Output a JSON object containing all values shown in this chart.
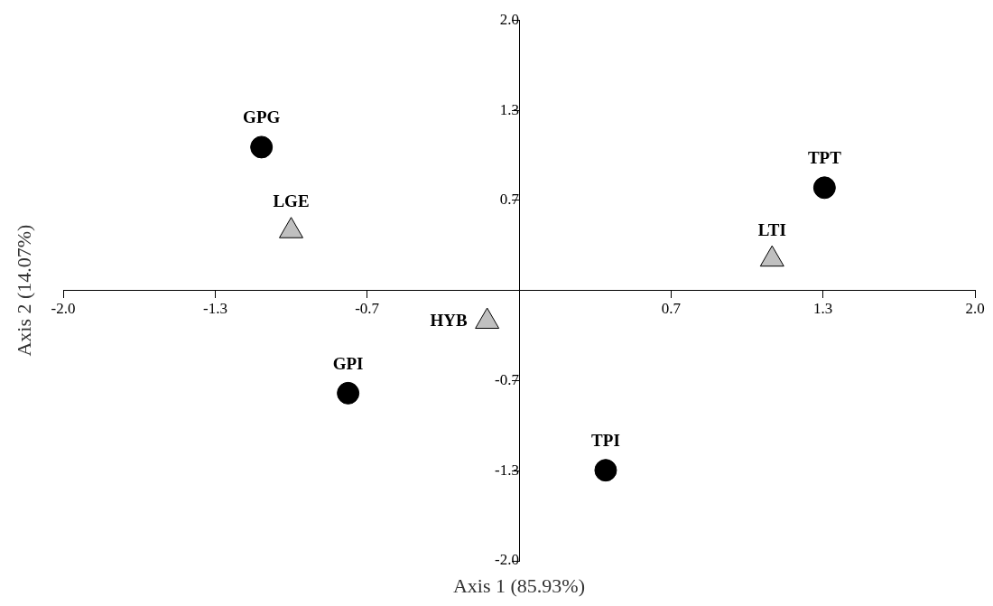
{
  "chart_data": {
    "type": "scatter",
    "xlabel": "Axis 1 (85.93%)",
    "ylabel": "Axis 2 (14.07%)",
    "xlim": [
      -2.0,
      2.0
    ],
    "ylim": [
      -2.0,
      2.0
    ],
    "xticks": [
      {
        "value": -2,
        "label": "-2.0"
      },
      {
        "value": -1.333,
        "label": "-1.3"
      },
      {
        "value": -0.667,
        "label": "-0.7"
      },
      {
        "value": 0.667,
        "label": "0.7"
      },
      {
        "value": 1.333,
        "label": "1.3"
      },
      {
        "value": 2,
        "label": "2.0"
      }
    ],
    "yticks": [
      {
        "value": -2,
        "label": "-2.0"
      },
      {
        "value": -1.333,
        "label": "-1.3"
      },
      {
        "value": -0.667,
        "label": "-0.7"
      },
      {
        "value": 0.667,
        "label": "0.7"
      },
      {
        "value": 1.333,
        "label": "1.3"
      },
      {
        "value": 2,
        "label": "2.0"
      }
    ],
    "grid": false,
    "legend": false,
    "series": [
      {
        "color": "#000000",
        "marker": "circle",
        "x": [
          -1.13,
          -0.75,
          0.38,
          1.34
        ],
        "values": [
          1.06,
          -0.76,
          -1.33,
          0.76
        ]
      },
      {
        "color": "#c0c0c0",
        "marker": "triangle",
        "x": [
          -1.0,
          -0.14,
          1.11
        ],
        "values": [
          0.44,
          -0.23,
          0.23
        ]
      }
    ],
    "annotations": [
      {
        "text": "GPG",
        "x": -1.13,
        "y": 1.06
      },
      {
        "text": "LGE",
        "x": -1.0,
        "y": 0.44
      },
      {
        "text": "GPI",
        "x": -0.75,
        "y": -0.76
      },
      {
        "text": "HYB",
        "x": -0.14,
        "y": -0.23
      },
      {
        "text": "TPI",
        "x": 0.38,
        "y": -1.33
      },
      {
        "text": "LTI",
        "x": 1.11,
        "y": 0.23
      },
      {
        "text": "TPT",
        "x": 1.34,
        "y": 0.76
      }
    ]
  }
}
